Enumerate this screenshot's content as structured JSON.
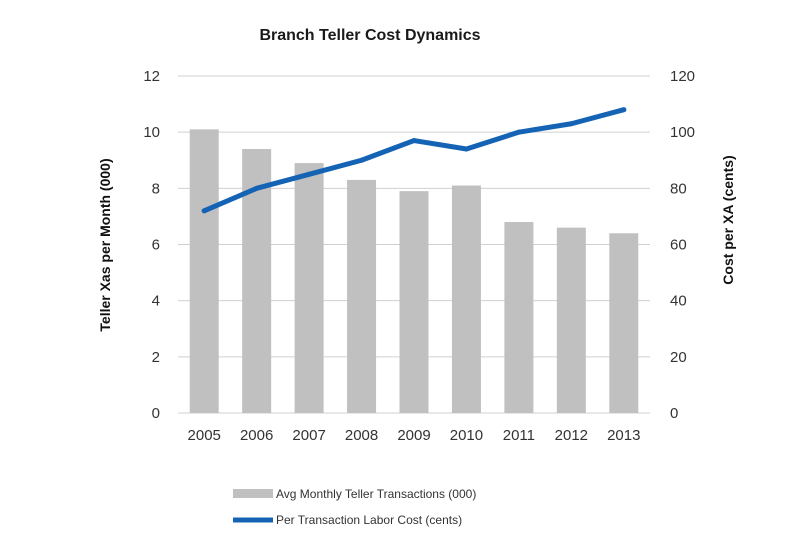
{
  "chart_data": {
    "type": "bar+line",
    "title": "Branch Teller Cost Dynamics",
    "categories": [
      "2005",
      "2006",
      "2007",
      "2008",
      "2009",
      "2010",
      "2011",
      "2012",
      "2013"
    ],
    "series": [
      {
        "name": "Avg Monthly Teller Transactions (000)",
        "type": "bar",
        "axis": "left",
        "color": "#c0c0c0",
        "values": [
          10.1,
          9.4,
          8.9,
          8.3,
          7.9,
          8.1,
          6.8,
          6.6,
          6.4
        ]
      },
      {
        "name": "Per Transaction Labor Cost (cents)",
        "type": "line",
        "axis": "right",
        "color": "#1463b4",
        "values": [
          72,
          80,
          85,
          90,
          97,
          94,
          100,
          103,
          108
        ]
      }
    ],
    "ylabel": "Teller Xas per Month (000)",
    "y2label": "Cost per XA (cents)",
    "ylim": [
      0,
      12
    ],
    "y2lim": [
      0,
      120
    ],
    "yticks": [
      "0",
      "2",
      "4",
      "6",
      "8",
      "10",
      "12"
    ],
    "y2ticks": [
      "0",
      "20",
      "40",
      "60",
      "80",
      "100",
      "120"
    ],
    "grid": true,
    "legend_position": "bottom-center"
  }
}
